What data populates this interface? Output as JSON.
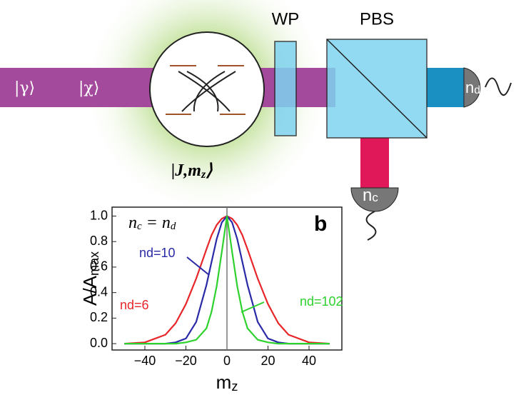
{
  "diagram": {
    "wp": "WP",
    "pbs": "PBS",
    "ket_gamma": "|γ⟩",
    "ket_chi": "|χ⟩",
    "ket_j": [
      "|J,m",
      "z",
      "⟩"
    ],
    "detector_d": [
      "n",
      "d"
    ],
    "detector_c": [
      "n",
      "c"
    ]
  },
  "chart_data": {
    "type": "line",
    "panel_label": "b",
    "equation": [
      "n",
      "c",
      " = n",
      "d"
    ],
    "y_label": [
      "A/A",
      "max"
    ],
    "x_label": [
      "m",
      "z"
    ],
    "x": [
      -50,
      -40,
      -30,
      -25,
      -20,
      -15,
      -10,
      -7.5,
      -5,
      -2.5,
      0,
      2.5,
      5,
      7.5,
      10,
      15,
      20,
      25,
      30,
      40,
      50
    ],
    "series": [
      {
        "name": "nd=6",
        "color": "#e8262a",
        "values": [
          0,
          0.01,
          0.07,
          0.16,
          0.31,
          0.51,
          0.74,
          0.85,
          0.93,
          0.98,
          1,
          0.98,
          0.93,
          0.85,
          0.74,
          0.51,
          0.31,
          0.16,
          0.07,
          0.01,
          0
        ]
      },
      {
        "name": "nd=10",
        "color": "#2a2aa8",
        "values": [
          0,
          0,
          0,
          0.01,
          0.04,
          0.17,
          0.46,
          0.64,
          0.82,
          0.95,
          1,
          0.95,
          0.82,
          0.64,
          0.46,
          0.17,
          0.04,
          0.01,
          0,
          0,
          0
        ]
      },
      {
        "name": "nd=102",
        "color": "#2ed12e",
        "values": [
          0,
          0,
          0,
          0,
          0.01,
          0.03,
          0.12,
          0.25,
          0.45,
          0.72,
          1,
          0.72,
          0.45,
          0.25,
          0.12,
          0.03,
          0.01,
          0,
          0,
          0,
          0
        ]
      }
    ],
    "xlim": [
      -56,
      56
    ],
    "ylim": [
      -0.05,
      1.07
    ],
    "xticks": [
      {
        "value": -40,
        "label": "−40"
      },
      {
        "value": -20,
        "label": "−20"
      },
      0,
      20,
      40
    ],
    "yticks": [
      {
        "value": 0,
        "label": "0.0"
      },
      {
        "value": 0.2,
        "label": "0.2"
      },
      {
        "value": 0.4,
        "label": "0.4"
      },
      {
        "value": 0.6,
        "label": "0.6"
      },
      {
        "value": 0.8,
        "label": "0.8"
      },
      {
        "value": 1,
        "label": "1.0"
      }
    ]
  }
}
